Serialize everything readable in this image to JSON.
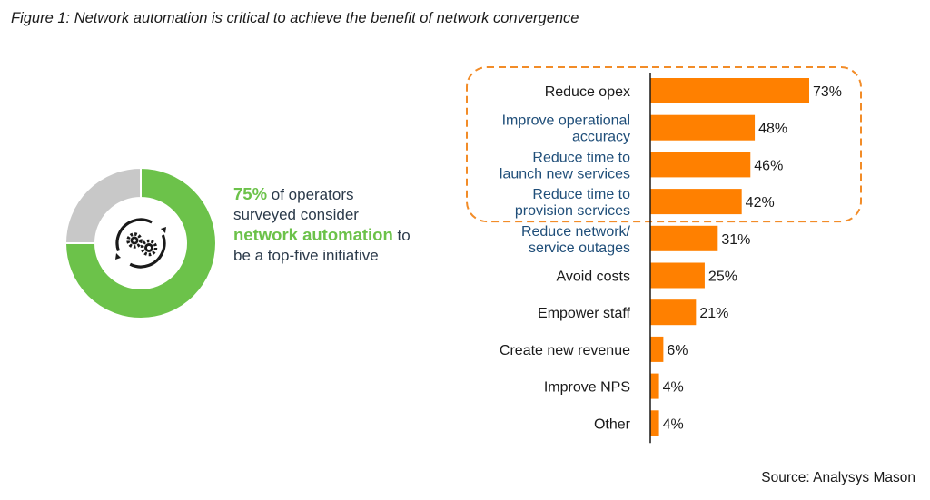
{
  "figure_title": "Figure 1: Network automation is critical to achieve the benefit of network convergence",
  "callout": {
    "percent": "75%",
    "text1": " of operators surveyed consider ",
    "highlight": "network automation",
    "text2": " to be a top-five initiative"
  },
  "donut": {
    "values": [
      75,
      25
    ],
    "colors": [
      "#6cc24a",
      "#c8c8c8"
    ],
    "icon": "gears-cycle-icon"
  },
  "chart_data": {
    "type": "bar",
    "orientation": "horizontal",
    "categories": [
      "Reduce opex",
      "Improve operational accuracy",
      "Reduce time to launch new services",
      "Reduce time to provision services",
      "Reduce network/ service outages",
      "Avoid costs",
      "Empower staff",
      "Create new revenue",
      "Improve NPS",
      "Other"
    ],
    "category_lines": [
      [
        "Reduce opex"
      ],
      [
        "Improve operational",
        "accuracy"
      ],
      [
        "Reduce time to",
        "launch new services"
      ],
      [
        "Reduce time to",
        "provision services"
      ],
      [
        "Reduce network/",
        "service outages"
      ],
      [
        "Avoid costs"
      ],
      [
        "Empower staff"
      ],
      [
        "Create new revenue"
      ],
      [
        "Improve NPS"
      ],
      [
        "Other"
      ]
    ],
    "label_colors": [
      "#1a1a1a",
      "#1f4e79",
      "#1f4e79",
      "#1f4e79",
      "#1f4e79",
      "#1a1a1a",
      "#1a1a1a",
      "#1a1a1a",
      "#1a1a1a",
      "#1a1a1a"
    ],
    "values": [
      73,
      48,
      46,
      42,
      31,
      25,
      21,
      6,
      4,
      4
    ],
    "value_labels": [
      "73%",
      "48%",
      "46%",
      "42%",
      "31%",
      "25%",
      "21%",
      "6%",
      "4%",
      "4%"
    ],
    "xlim": [
      0,
      73
    ],
    "bar_color": "#ff8000",
    "highlight_group": [
      0,
      1,
      2,
      3
    ],
    "highlight_color": "#f28c28"
  },
  "source": "Source: Analysys Mason"
}
